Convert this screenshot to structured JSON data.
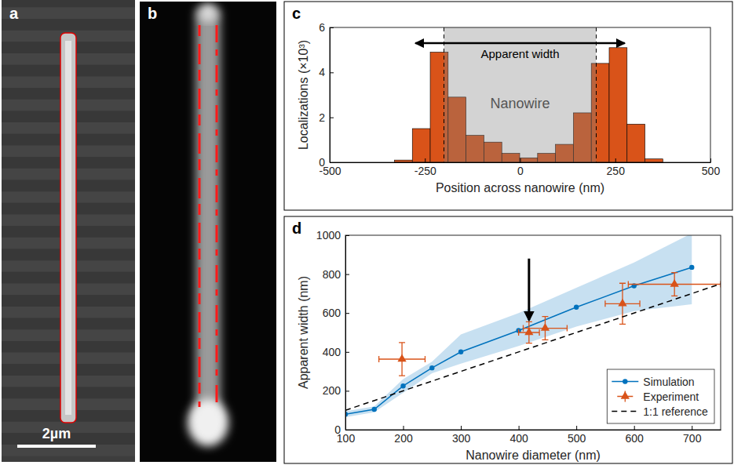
{
  "chart_data": [
    {
      "type": "image",
      "panel": "a",
      "scale_bar": "2µm"
    },
    {
      "type": "image",
      "panel": "b"
    },
    {
      "type": "histogram",
      "panel": "c",
      "xlabel": "Position across nanowire (nm)",
      "ylabel": "Localizations (×10³)",
      "bins": [
        -330,
        -283,
        -236,
        -189,
        -142,
        -95,
        -48,
        -1,
        46,
        93,
        140,
        187,
        234,
        281,
        328,
        375
      ],
      "counts": [
        0.1,
        1.5,
        4.9,
        2.9,
        1.2,
        0.9,
        0.4,
        0.2,
        0.4,
        0.8,
        2.2,
        4.4,
        5.1,
        1.7,
        0.15
      ],
      "color": "#d95319",
      "xlim": [
        -500,
        500
      ],
      "xticks": [
        -500,
        -250,
        0,
        250,
        500
      ],
      "ylim": [
        0,
        6
      ],
      "yticks": [
        0,
        2,
        4,
        6
      ],
      "shaded_region": {
        "label": "Nanowire",
        "x": [
          -200,
          200
        ]
      },
      "arrow": {
        "label": "Apparent width",
        "x": [
          -275,
          275
        ],
        "y": 5.3
      }
    },
    {
      "type": "line",
      "panel": "d",
      "xlabel": "Nanowire diameter (nm)",
      "ylabel": "Apparent width (nm)",
      "xlim": [
        100,
        750
      ],
      "xticks": [
        100,
        200,
        300,
        400,
        500,
        600,
        700
      ],
      "ylim": [
        0,
        1000
      ],
      "yticks": [
        0,
        200,
        400,
        600,
        800,
        1000
      ],
      "legend": "lower right",
      "arrow": {
        "x": 418,
        "y": [
          880,
          565
        ]
      },
      "series": [
        {
          "name": "Simulation",
          "type": "line",
          "color": "#0072bd",
          "marker": "circle",
          "x": [
            100,
            150,
            200,
            250,
            300,
            400,
            500,
            600,
            700
          ],
          "values": [
            80,
            105,
            225,
            318,
            400,
            510,
            630,
            740,
            835
          ],
          "band_low": [
            65,
            90,
            190,
            290,
            340,
            430,
            530,
            610,
            645
          ],
          "band_high": [
            95,
            120,
            260,
            350,
            490,
            600,
            730,
            860,
            1010
          ]
        },
        {
          "name": "Experiment",
          "type": "scatter",
          "color": "#d95319",
          "marker": "triangle",
          "x": [
            198,
            418,
            446,
            580,
            670
          ],
          "values": [
            363,
            500,
            522,
            648,
            748
          ],
          "x_error": [
            40,
            18,
            38,
            30,
            80
          ],
          "y_error": [
            85,
            55,
            60,
            105,
            60
          ]
        },
        {
          "name": "1:1 reference",
          "type": "line",
          "color": "#000000",
          "line_style": "dashed",
          "x": [
            100,
            750
          ],
          "values": [
            100,
            750
          ]
        }
      ]
    }
  ]
}
